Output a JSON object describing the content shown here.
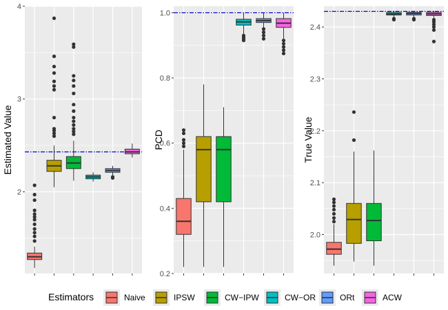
{
  "chart_data": [
    {
      "type": "box",
      "ylabel": "Estimated Value",
      "ylim": [
        1.12,
        4.0
      ],
      "yticks": [
        2,
        3,
        4
      ],
      "yticklabels": [
        "2",
        "3",
        "4"
      ],
      "reference_line": 2.43,
      "boxes": [
        {
          "estimator": "Naive",
          "whisker_low": 1.18,
          "q1": 1.27,
          "median": 1.3,
          "q3": 1.34,
          "whisker_high": 1.41,
          "outliers": [
            1.47,
            1.52,
            1.56,
            1.6,
            1.65,
            1.7,
            1.73,
            1.76,
            1.8,
            1.91,
            1.97,
            2.07
          ]
        },
        {
          "estimator": "IPSW",
          "whisker_low": 2.05,
          "q1": 2.22,
          "median": 2.28,
          "q3": 2.34,
          "whisker_high": 2.5,
          "outliers": [
            2.6,
            2.63,
            2.66,
            2.68,
            2.8,
            3.1,
            3.14,
            3.19,
            3.28,
            3.35,
            3.46,
            3.87
          ]
        },
        {
          "estimator": "CW-IPW",
          "whisker_low": 2.12,
          "q1": 2.25,
          "median": 2.31,
          "q3": 2.38,
          "whisker_high": 2.55,
          "outliers": [
            2.62,
            2.65,
            2.68,
            2.72,
            2.76,
            2.8,
            2.87,
            2.94,
            3.06,
            3.14,
            3.2,
            3.25,
            3.56,
            3.59
          ]
        },
        {
          "estimator": "CW-OR",
          "whisker_low": 2.11,
          "q1": 2.14,
          "median": 2.16,
          "q3": 2.18,
          "whisker_high": 2.21,
          "outliers": []
        },
        {
          "estimator": "ORt",
          "whisker_low": 2.18,
          "q1": 2.21,
          "median": 2.23,
          "q3": 2.25,
          "whisker_high": 2.28,
          "outliers": [
            2.15,
            2.16
          ]
        },
        {
          "estimator": "ACW",
          "whisker_low": 2.37,
          "q1": 2.41,
          "median": 2.43,
          "q3": 2.46,
          "whisker_high": 2.52,
          "outliers": []
        }
      ]
    },
    {
      "type": "box",
      "ylabel": "PCD",
      "ylim": [
        0.2,
        1.02
      ],
      "yticks": [
        0.2,
        0.4,
        0.6,
        0.8,
        1.0
      ],
      "yticklabels": [
        "0.2",
        "0.4",
        "0.6",
        "0.8",
        "1.0"
      ],
      "reference_line": 1.0,
      "boxes": [
        {
          "estimator": "Naive",
          "whisker_low": 0.22,
          "q1": 0.32,
          "median": 0.36,
          "q3": 0.43,
          "whisker_high": 0.58,
          "outliers": [
            0.59,
            0.6,
            0.61,
            0.63,
            0.64
          ]
        },
        {
          "estimator": "IPSW",
          "whisker_low": 0.22,
          "q1": 0.42,
          "median": 0.58,
          "q3": 0.62,
          "whisker_high": 0.78,
          "outliers": []
        },
        {
          "estimator": "CW-IPW",
          "whisker_low": 0.22,
          "q1": 0.42,
          "median": 0.58,
          "q3": 0.62,
          "whisker_high": 0.71,
          "outliers": []
        },
        {
          "estimator": "CW-OR",
          "whisker_low": 0.935,
          "q1": 0.962,
          "median": 0.972,
          "q3": 0.98,
          "whisker_high": 1.0,
          "outliers": [
            0.915,
            0.92,
            0.925,
            0.93
          ]
        },
        {
          "estimator": "ORt",
          "whisker_low": 0.94,
          "q1": 0.97,
          "median": 0.976,
          "q3": 0.982,
          "whisker_high": 1.0,
          "outliers": [
            0.92,
            0.93,
            0.94,
            0.95
          ]
        },
        {
          "estimator": "ACW",
          "whisker_low": 0.92,
          "q1": 0.955,
          "median": 0.968,
          "q3": 0.982,
          "whisker_high": 1.0,
          "outliers": [
            0.875,
            0.885,
            0.895,
            0.905,
            0.915
          ]
        }
      ]
    },
    {
      "type": "box",
      "ylabel": "True Value",
      "ylim": [
        1.925,
        2.44
      ],
      "yticks": [
        2.0,
        2.1,
        2.2,
        2.3,
        2.4
      ],
      "yticklabels": [
        "2.0",
        "2.1",
        "2.2",
        "2.3",
        "2.4"
      ],
      "reference_line": 2.43,
      "boxes": [
        {
          "estimator": "Naive",
          "whisker_low": 1.94,
          "q1": 1.962,
          "median": 1.972,
          "q3": 1.985,
          "whisker_high": 2.02,
          "outliers": [
            2.025,
            2.032,
            2.04,
            2.048,
            2.055,
            2.062,
            2.068
          ]
        },
        {
          "estimator": "IPSW",
          "whisker_low": 1.948,
          "q1": 1.983,
          "median": 2.029,
          "q3": 2.06,
          "whisker_high": 2.16,
          "outliers": [
            2.182,
            2.236
          ]
        },
        {
          "estimator": "CW-IPW",
          "whisker_low": 1.94,
          "q1": 1.988,
          "median": 2.027,
          "q3": 2.06,
          "whisker_high": 2.162,
          "outliers": []
        },
        {
          "estimator": "CW-OR",
          "whisker_low": 2.418,
          "q1": 2.423,
          "median": 2.425,
          "q3": 2.428,
          "whisker_high": 2.431,
          "outliers": [
            2.414,
            2.416
          ]
        },
        {
          "estimator": "ORt",
          "whisker_low": 2.418,
          "q1": 2.423,
          "median": 2.426,
          "q3": 2.428,
          "whisker_high": 2.431,
          "outliers": [
            2.414,
            2.416
          ]
        },
        {
          "estimator": "ACW",
          "whisker_low": 2.418,
          "q1": 2.422,
          "median": 2.425,
          "q3": 2.428,
          "whisker_high": 2.431,
          "outliers": [
            2.372,
            2.394,
            2.4,
            2.405,
            2.41,
            2.414
          ]
        }
      ]
    }
  ],
  "legend": {
    "title": "Estimators",
    "items": [
      {
        "label": "Naive",
        "color": "#F8766D"
      },
      {
        "label": "IPSW",
        "color": "#B79F00"
      },
      {
        "label": "CW−IPW",
        "color": "#00BA38"
      },
      {
        "label": "CW−OR",
        "color": "#00BFC4"
      },
      {
        "label": "ORt",
        "color": "#619CFF"
      },
      {
        "label": "ACW",
        "color": "#F564E3"
      }
    ]
  },
  "colors": {
    "panel_bg": "#EBEBEB",
    "grid": "#FFFFFF",
    "reference_line": "#0000CC",
    "outlier": "#333333"
  }
}
